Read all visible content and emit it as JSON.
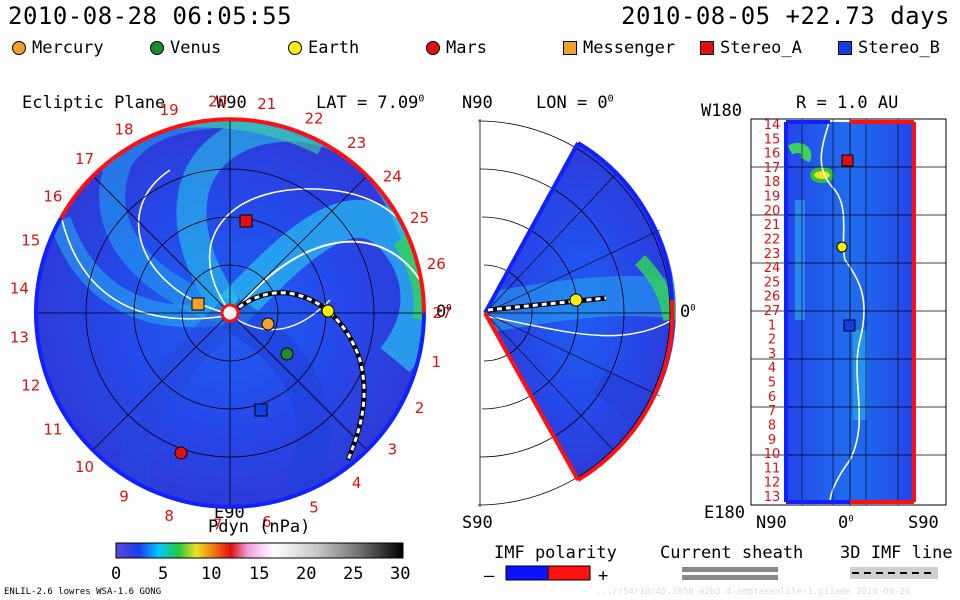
{
  "header": {
    "datetime": "2010-08-28 06:05:55",
    "run_info": "2010-08-05 +22.73 days"
  },
  "legend": [
    {
      "name": "Mercury",
      "shape": "circle",
      "color": "#f2a22a"
    },
    {
      "name": "Venus",
      "shape": "circle",
      "color": "#1e8a2e"
    },
    {
      "name": "Earth",
      "shape": "circle",
      "color": "#ffee00"
    },
    {
      "name": "Mars",
      "shape": "circle",
      "color": "#e01010"
    },
    {
      "name": "Messenger",
      "shape": "square",
      "color": "#f2a22a"
    },
    {
      "name": "Stereo_A",
      "shape": "square",
      "color": "#e01010"
    },
    {
      "name": "Stereo_B",
      "shape": "square",
      "color": "#1040e0"
    }
  ],
  "panel_ecliptic": {
    "title": "Ecliptic Plane",
    "top_label": "W90",
    "bottom_label": "E90",
    "lat_label": "LAT = 7.09",
    "degree_mark": "0",
    "right_label": "0",
    "degree_mark_right": "0",
    "carrington_labels": [
      "27",
      "1",
      "2",
      "3",
      "4",
      "5",
      "6",
      "7",
      "8",
      "9",
      "10",
      "11",
      "12",
      "13",
      "14",
      "15",
      "16",
      "17",
      "18",
      "19",
      "20",
      "21",
      "22",
      "23",
      "24",
      "25",
      "26"
    ]
  },
  "panel_meridional": {
    "top_label": "N90",
    "lon_label": "LON = 0",
    "degree_mark": "0",
    "bottom_label": "S90",
    "right_label": "0",
    "degree_mark_right": "0"
  },
  "panel_radius": {
    "top_label": "W180",
    "r_label": "R = 1.0 AU",
    "bottom_label": "E180",
    "x_labels": [
      "N90",
      "0",
      "S90"
    ],
    "degree_mark": "0",
    "y_labels": [
      "14",
      "15",
      "16",
      "17",
      "18",
      "19",
      "20",
      "21",
      "22",
      "23",
      "24",
      "25",
      "26",
      "27",
      "1",
      "2",
      "3",
      "4",
      "5",
      "6",
      "7",
      "8",
      "9",
      "10",
      "11",
      "12",
      "13"
    ]
  },
  "colorbar": {
    "title": "Pdyn (nPa)",
    "ticks": [
      "0",
      "5",
      "10",
      "15",
      "20",
      "25",
      "30"
    ]
  },
  "imf_polarity": {
    "title": "IMF polarity",
    "minus": "–",
    "plus": "+",
    "neg_color": "#0a14ff",
    "pos_color": "#ff1010"
  },
  "current_sheath": {
    "title": "Current sheath"
  },
  "imf_line": {
    "title": "3D IMF line"
  },
  "footer": {
    "left": "ENLIL-2.6 lowres WSA-1.6 GONG",
    "right": "...//54r18c45.2058-a2b3.4-emptasenlile-1.gi1ade   2010-08-28"
  }
}
